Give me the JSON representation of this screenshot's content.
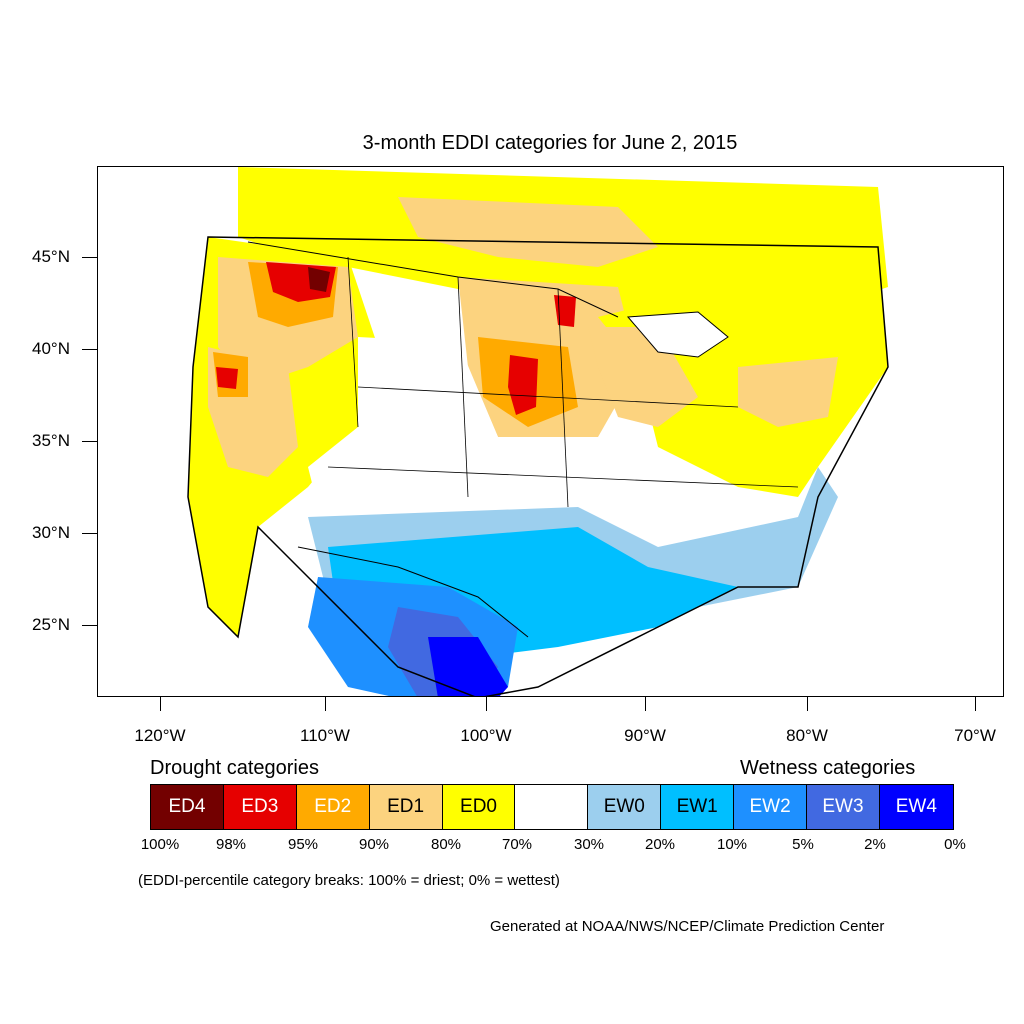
{
  "title": "3-month EDDI categories for June 2, 2015",
  "map": {
    "lat_ticks": [
      "45°N",
      "40°N",
      "35°N",
      "30°N",
      "25°N"
    ],
    "lon_ticks": [
      "120°W",
      "110°W",
      "100°W",
      "90°W",
      "80°W",
      "70°W"
    ]
  },
  "legend": {
    "drought_heading": "Drought categories",
    "wetness_heading": "Wetness categories",
    "categories": [
      {
        "label": "ED4",
        "color": "#730000",
        "text_color": "#ffffff"
      },
      {
        "label": "ED3",
        "color": "#e60000",
        "text_color": "#ffffff"
      },
      {
        "label": "ED2",
        "color": "#ffaa00",
        "text_color": "#ffffff"
      },
      {
        "label": "ED1",
        "color": "#fcd37f",
        "text_color": "#000000"
      },
      {
        "label": "ED0",
        "color": "#ffff00",
        "text_color": "#000000"
      },
      {
        "label": "",
        "color": "#ffffff",
        "text_color": "#000000"
      },
      {
        "label": "EW0",
        "color": "#9ccfee",
        "text_color": "#000000"
      },
      {
        "label": "EW1",
        "color": "#00bfff",
        "text_color": "#000000"
      },
      {
        "label": "EW2",
        "color": "#1e90ff",
        "text_color": "#ffffff"
      },
      {
        "label": "EW3",
        "color": "#4169e1",
        "text_color": "#ffffff"
      },
      {
        "label": "EW4",
        "color": "#0000ff",
        "text_color": "#ffffff"
      }
    ],
    "percent_breaks": [
      "100%",
      "98%",
      "95%",
      "90%",
      "80%",
      "70%",
      "30%",
      "20%",
      "10%",
      "5%",
      "2%",
      "0%"
    ],
    "note": "(EDDI-percentile category breaks: 100% = driest; 0% = wettest)"
  },
  "credit": "Generated at NOAA/NWS/NCEP/Climate Prediction Center"
}
